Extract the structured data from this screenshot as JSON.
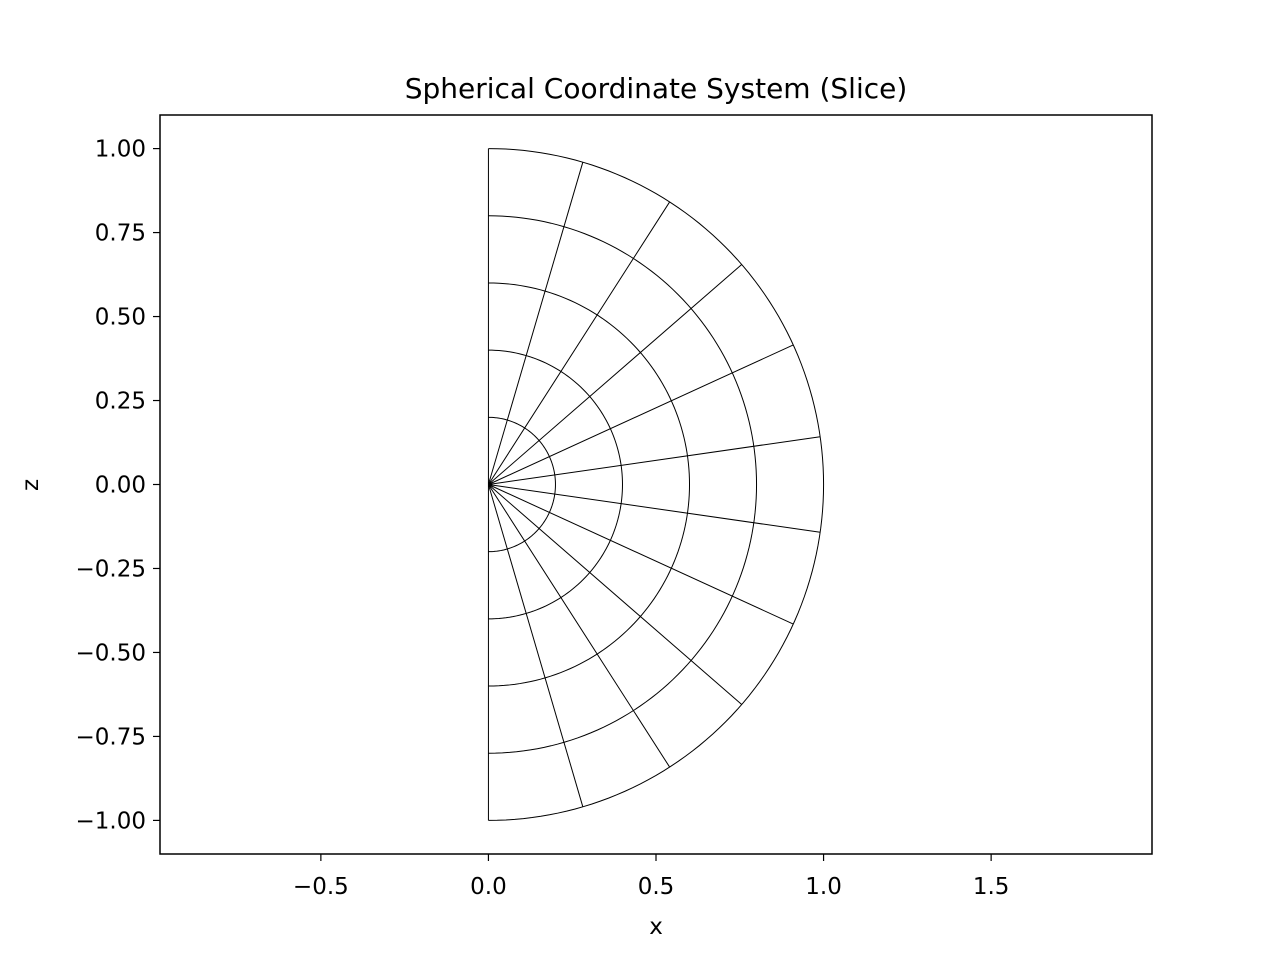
{
  "chart_data": {
    "type": "line",
    "title": "Spherical Coordinate System (Slice)",
    "xlabel": "x",
    "ylabel": "z",
    "xlim": [
      -0.98,
      1.98
    ],
    "ylim": [
      -1.1,
      1.1
    ],
    "xticks": [
      -0.5,
      0.0,
      0.5,
      1.0,
      1.5
    ],
    "xtick_labels": [
      "−0.5",
      "0.0",
      "0.5",
      "1.0",
      "1.5"
    ],
    "yticks": [
      1.0,
      0.75,
      0.5,
      0.25,
      0.0,
      -0.25,
      -0.5,
      -0.75,
      -1.0
    ],
    "ytick_labels": [
      "1.00",
      "0.75",
      "0.50",
      "0.25",
      "0.00",
      "−0.25",
      "−0.50",
      "−0.75",
      "−1.00"
    ],
    "grid": false,
    "radii": [
      0.2,
      0.4,
      0.6,
      0.8,
      1.0
    ],
    "polar_angles_deg": [
      0,
      16.36,
      32.73,
      49.09,
      65.45,
      81.82,
      98.18,
      114.55,
      130.91,
      147.27,
      163.64,
      180
    ],
    "line_color": "#000000"
  }
}
